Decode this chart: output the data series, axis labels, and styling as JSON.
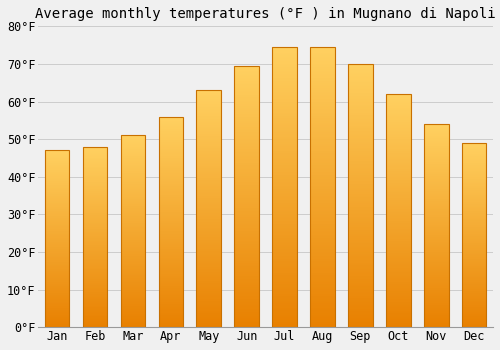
{
  "title": "Average monthly temperatures (°F ) in Mugnano di Napoli",
  "months": [
    "Jan",
    "Feb",
    "Mar",
    "Apr",
    "May",
    "Jun",
    "Jul",
    "Aug",
    "Sep",
    "Oct",
    "Nov",
    "Dec"
  ],
  "values": [
    47,
    48,
    51,
    56,
    63,
    69.5,
    74.5,
    74.5,
    70,
    62,
    54,
    49
  ],
  "bar_color_bottom": "#E88000",
  "bar_color_top": "#FFD060",
  "bar_edge_color": "#C87000",
  "background_color": "#F0F0F0",
  "grid_color": "#CCCCCC",
  "ylim": [
    0,
    80
  ],
  "yticks": [
    0,
    10,
    20,
    30,
    40,
    50,
    60,
    70,
    80
  ],
  "ytick_labels": [
    "0°F",
    "10°F",
    "20°F",
    "30°F",
    "40°F",
    "50°F",
    "60°F",
    "70°F",
    "80°F"
  ],
  "title_fontsize": 10,
  "tick_fontsize": 8.5,
  "font_family": "monospace"
}
